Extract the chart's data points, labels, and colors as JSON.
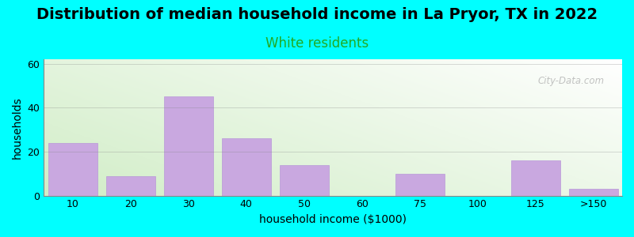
{
  "title": "Distribution of median household income in La Pryor, TX in 2022",
  "subtitle": "White residents",
  "xlabel": "household income ($1000)",
  "ylabel": "households",
  "background_color": "#00FFFF",
  "bar_color": "#C9A8E0",
  "bar_edge_color": "#B898D8",
  "categories": [
    "10",
    "20",
    "30",
    "40",
    "50",
    "60",
    "75",
    "100",
    "125",
    ">150"
  ],
  "values": [
    24,
    9,
    45,
    26,
    14,
    0,
    10,
    0,
    16,
    3
  ],
  "ylim": [
    0,
    62
  ],
  "yticks": [
    0,
    20,
    40,
    60
  ],
  "title_fontsize": 14,
  "subtitle_fontsize": 12,
  "subtitle_color": "#22AA22",
  "axis_label_fontsize": 10,
  "tick_fontsize": 9,
  "watermark": "City-Data.com"
}
